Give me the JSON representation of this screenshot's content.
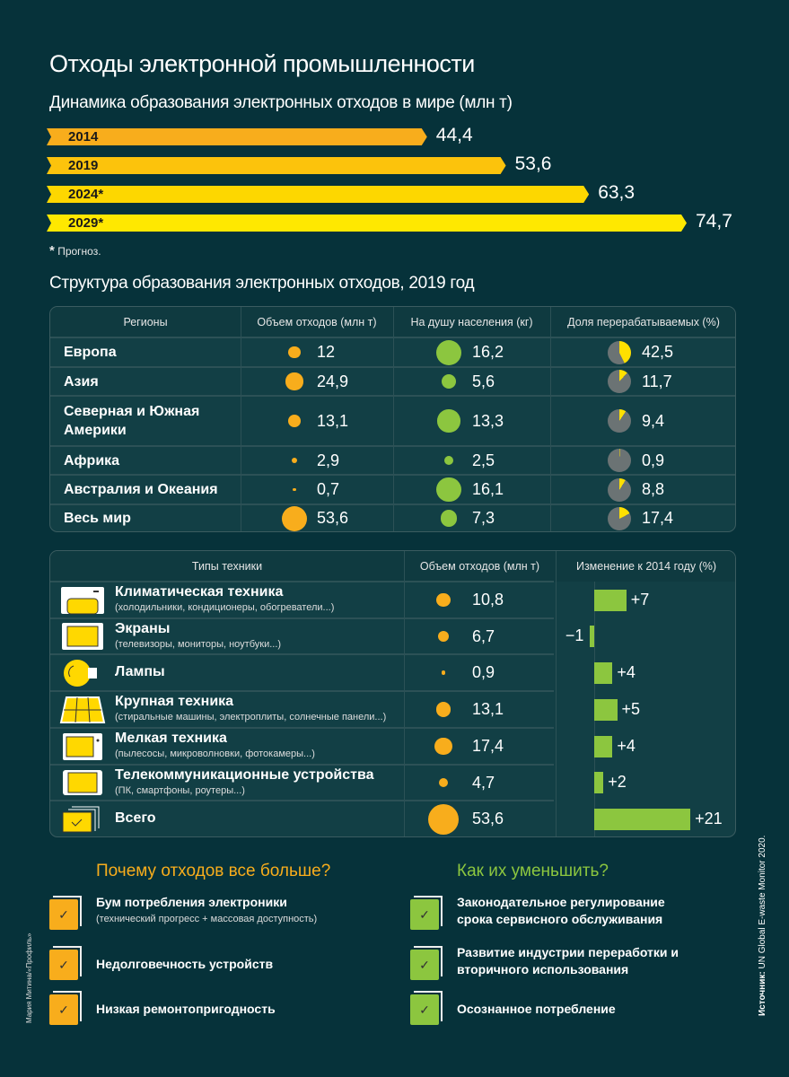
{
  "title": "Отходы электронной промышленности",
  "chart_data": [
    {
      "type": "bar",
      "title": "Динамика образования электронных отходов в мире (млн т)",
      "categories": [
        "2014",
        "2019",
        "2024*",
        "2029*"
      ],
      "value_labels": [
        "44,4",
        "53,6",
        "63,3",
        "74,7"
      ],
      "values": [
        44.4,
        53.6,
        63.3,
        74.7
      ],
      "colors": [
        "#f8ad1c",
        "#fcc30c",
        "#fdd700",
        "#ffe800"
      ],
      "note": "Прогноз.",
      "note_mark": "*"
    },
    {
      "type": "table",
      "title": "Структура образования электронных отходов, 2019 год",
      "headers": [
        "Регионы",
        "Объем отходов (млн т)",
        "На душу населения (кг)",
        "Доля перерабатываемых (%)"
      ],
      "rows": [
        {
          "region": "Европа",
          "volume": 12,
          "volume_label": "12",
          "per_capita": 16.2,
          "per_capita_label": "16,2",
          "recycled": 42.5,
          "recycled_label": "42,5"
        },
        {
          "region": "Азия",
          "volume": 24.9,
          "volume_label": "24,9",
          "per_capita": 5.6,
          "per_capita_label": "5,6",
          "recycled": 11.7,
          "recycled_label": "11,7"
        },
        {
          "region": "Северная и Южная Америки",
          "volume": 13.1,
          "volume_label": "13,1",
          "per_capita": 13.3,
          "per_capita_label": "13,3",
          "recycled": 9.4,
          "recycled_label": "9,4"
        },
        {
          "region": "Африка",
          "volume": 2.9,
          "volume_label": "2,9",
          "per_capita": 2.5,
          "per_capita_label": "2,5",
          "recycled": 0.9,
          "recycled_label": "0,9"
        },
        {
          "region": "Австралия и Океания",
          "volume": 0.7,
          "volume_label": "0,7",
          "per_capita": 16.1,
          "per_capita_label": "16,1",
          "recycled": 8.8,
          "recycled_label": "8,8"
        },
        {
          "region": "Весь мир",
          "volume": 53.6,
          "volume_label": "53,6",
          "per_capita": 7.3,
          "per_capita_label": "7,3",
          "recycled": 17.4,
          "recycled_label": "17,4"
        }
      ]
    },
    {
      "type": "table",
      "headers": [
        "Типы техники",
        "Объем отходов (млн т)",
        "Изменение к 2014 году (%)"
      ],
      "rows": [
        {
          "icon": "air-conditioner-icon",
          "name": "Климатическая техника",
          "desc": "(холодильники, кондиционеры, обогреватели...)",
          "volume": 10.8,
          "volume_label": "10,8",
          "change": 7,
          "change_label": "+7"
        },
        {
          "icon": "screen-icon",
          "name": "Экраны",
          "desc": "(телевизоры, мониторы, ноутбуки...)",
          "volume": 6.7,
          "volume_label": "6,7",
          "change": -1,
          "change_label": "−1"
        },
        {
          "icon": "lamp-icon",
          "name": "Лампы",
          "desc": "",
          "volume": 0.9,
          "volume_label": "0,9",
          "change": 4,
          "change_label": "+4"
        },
        {
          "icon": "solar-panel-icon",
          "name": "Крупная техника",
          "desc": "(стиральные машины, электроплиты, солнечные панели...)",
          "volume": 13.1,
          "volume_label": "13,1",
          "change": 5,
          "change_label": "+5"
        },
        {
          "icon": "microwave-icon",
          "name": "Мелкая техника",
          "desc": "(пылесосы, микроволновки, фотокамеры...)",
          "volume": 17.4,
          "volume_label": "17,4",
          "change": 4,
          "change_label": "+4"
        },
        {
          "icon": "tablet-icon",
          "name": "Телекоммуникационные устройства",
          "desc": "(ПК, смартфоны, роутеры...)",
          "volume": 4.7,
          "volume_label": "4,7",
          "change": 2,
          "change_label": "+2"
        },
        {
          "icon": "stack-check-icon",
          "name": "Всего",
          "desc": "",
          "volume": 53.6,
          "volume_label": "53,6",
          "change": 21,
          "change_label": "+21"
        }
      ]
    }
  ],
  "why": {
    "title": "Почему отходов все больше?",
    "items": [
      {
        "text": "Бум потребления электроники",
        "sub": "(технический прогресс + массовая доступность)"
      },
      {
        "text": "Недолговечность устройств",
        "sub": ""
      },
      {
        "text": "Низкая ремонтопригодность",
        "sub": ""
      }
    ]
  },
  "how": {
    "title": "Как их уменьшить?",
    "items": [
      {
        "text": "Законодательное регулирование срока сервисного обслуживания",
        "sub": ""
      },
      {
        "text": "Развитие индустрии переработки и вторичного использования",
        "sub": ""
      },
      {
        "text": "Осознанное потребление",
        "sub": ""
      }
    ]
  },
  "author": "Мария Митина/«Профиль»",
  "source_label": "Источник:",
  "source": "UN Global E-waste Monitor 2020.",
  "colors": {
    "bg": "#06323a",
    "orange": "#f8ad1c",
    "green": "#8cc63f",
    "yellow": "#ffe000",
    "pie_gray": "#6b7374"
  }
}
